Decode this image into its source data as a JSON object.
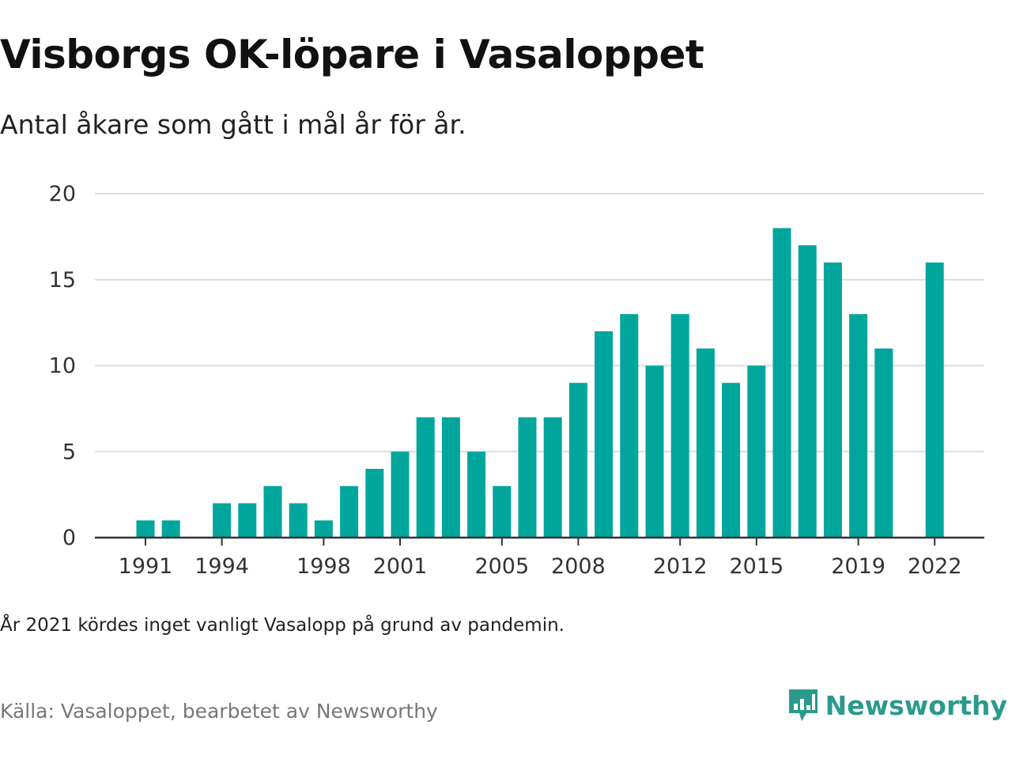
{
  "title": "Visborgs OK-löpare i Vasaloppet",
  "subtitle": "Antal åkare som gått i mål år för år.",
  "note": "År 2021 kördes inget vanligt Vasalopp på grund av pandemin.",
  "source": "Källa: Vasaloppet, bearbetet av Newsworthy",
  "brand": {
    "name": "Newsworthy",
    "icon": "newsworthy-logo-icon"
  },
  "colors": {
    "bar": "#00a69c",
    "grid": "#dddddd",
    "axis": "#333333",
    "brand": "#2a9a8c"
  },
  "chart_data": {
    "type": "bar",
    "x": [
      1991,
      1992,
      1993,
      1994,
      1995,
      1996,
      1997,
      1998,
      1999,
      2000,
      2001,
      2002,
      2003,
      2004,
      2005,
      2006,
      2007,
      2008,
      2009,
      2010,
      2011,
      2012,
      2013,
      2014,
      2015,
      2016,
      2017,
      2018,
      2019,
      2020,
      2021,
      2022
    ],
    "values": [
      1,
      1,
      null,
      2,
      2,
      3,
      2,
      1,
      3,
      4,
      5,
      7,
      7,
      5,
      3,
      7,
      7,
      9,
      12,
      13,
      10,
      13,
      11,
      9,
      10,
      18,
      17,
      16,
      13,
      11,
      null,
      16
    ],
    "x_ticks": [
      "1991",
      "1994",
      "1998",
      "2001",
      "2005",
      "2008",
      "2012",
      "2015",
      "2019",
      "2022"
    ],
    "y_ticks": [
      "0",
      "5",
      "10",
      "15",
      "20"
    ],
    "ylim": [
      0,
      20
    ],
    "grid": true,
    "xlabel": "",
    "ylabel": ""
  }
}
